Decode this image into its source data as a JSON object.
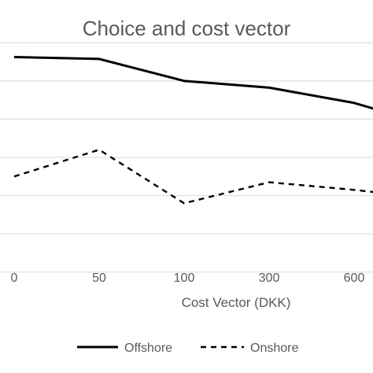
{
  "chart_data": {
    "type": "line",
    "title": "Choice and cost vector",
    "xlabel": "Cost Vector (DKK)",
    "ylabel": "",
    "categories": [
      "0",
      "50",
      "100",
      "300",
      "600",
      ""
    ],
    "series": [
      {
        "name": "Offshore",
        "style": "solid",
        "values": [
          0.925,
          0.915,
          0.8,
          0.765,
          0.685,
          0.555
        ]
      },
      {
        "name": "Onshore",
        "style": "dashed",
        "values": [
          0.3,
          0.44,
          0.16,
          0.27,
          0.23,
          0.18
        ]
      }
    ],
    "ylim": [
      -0.3,
      1.1
    ],
    "yticks": [
      -0.2,
      0,
      0.2,
      0.4,
      0.6,
      0.8,
      1.0
    ],
    "grid": true,
    "legend": "bottom",
    "colors": {
      "text": "#595959",
      "grid": "#d9d9d9",
      "line": "#000000"
    }
  }
}
